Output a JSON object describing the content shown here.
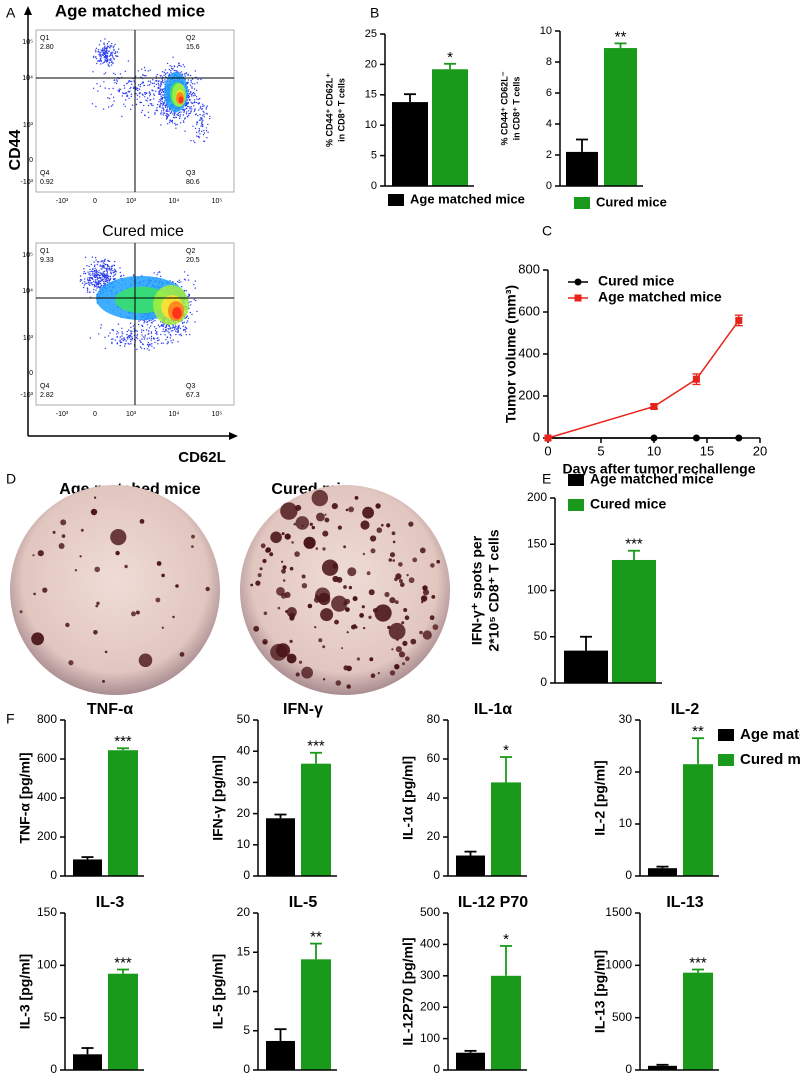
{
  "panel_labels": [
    "A",
    "B",
    "C",
    "D",
    "E",
    "F"
  ],
  "flow": {
    "y_axis_label": "CD44",
    "x_axis_label": "CD62L",
    "yticks": [
      "10⁵",
      "10⁴",
      "10³",
      "0",
      "-10³"
    ],
    "xticks": [
      "-10³",
      "0",
      "10³",
      "10⁴",
      "10⁵"
    ],
    "plots": [
      {
        "title": "Age matched mice",
        "quadrants": [
          {
            "name": "Q1",
            "value": "2.80"
          },
          {
            "name": "Q2",
            "value": "15.6"
          },
          {
            "name": "Q3",
            "value": "80.6"
          },
          {
            "name": "Q4",
            "value": "0.92"
          }
        ]
      },
      {
        "title": "Cured mice",
        "quadrants": [
          {
            "name": "Q1",
            "value": "9.33"
          },
          {
            "name": "Q2",
            "value": "20.5"
          },
          {
            "name": "Q3",
            "value": "67.3"
          },
          {
            "name": "Q4",
            "value": "2.82"
          }
        ]
      }
    ]
  },
  "elispot": {
    "titles": [
      "Age matched mice",
      "Cured mice"
    ]
  },
  "chart_data": [
    {
      "type": "bar",
      "ylabel": [
        "% CD44⁺ CD62L⁺",
        "in CD8⁺ T cells"
      ],
      "values": [
        13.8,
        19.2
      ],
      "errors": [
        1.3,
        0.9
      ],
      "colors": [
        "#000000",
        "#1a9a1a"
      ],
      "ylim": [
        0,
        25
      ],
      "yticks": [
        0,
        5,
        10,
        15,
        20,
        25
      ],
      "annotation": "*",
      "legend": [
        {
          "name": "Age matched mice",
          "color": "#000000"
        }
      ]
    },
    {
      "type": "bar",
      "ylabel": [
        "% CD44⁺ CD62L⁻",
        "in CD8⁺ T cells"
      ],
      "values": [
        2.2,
        8.9
      ],
      "errors": [
        0.8,
        0.3
      ],
      "colors": [
        "#000000",
        "#1a9a1a"
      ],
      "ylim": [
        0,
        10
      ],
      "yticks": [
        0,
        2,
        4,
        6,
        8,
        10
      ],
      "annotation": "**",
      "legend": [
        {
          "name": "Cured mice",
          "color": "#1a9a1a"
        }
      ]
    },
    {
      "type": "line",
      "xlabel": "Days after tumor rechallenge",
      "ylabel": "Tumor volume (mm³)",
      "x": [
        0,
        10,
        14,
        18
      ],
      "xlim": [
        0,
        20
      ],
      "xticks": [
        0,
        5,
        10,
        15,
        20
      ],
      "ylim": [
        0,
        800
      ],
      "yticks": [
        0,
        200,
        400,
        600,
        800
      ],
      "legend_position": "upper left",
      "series": [
        {
          "name": "Cured mice",
          "color": "#000000",
          "marker": "circle",
          "values": [
            0,
            0,
            0,
            0
          ]
        },
        {
          "name": "Age matched mice",
          "color": "#e8231b",
          "marker": "square",
          "values": [
            0,
            150,
            280,
            560
          ],
          "errors": [
            0,
            10,
            25,
            25
          ]
        }
      ]
    },
    {
      "type": "bar",
      "ylabel": [
        "IFN-γ⁺ spots per",
        "2*10⁵ CD8⁺ T cells"
      ],
      "values": [
        35,
        133
      ],
      "errors": [
        15,
        10
      ],
      "colors": [
        "#000000",
        "#1a9a1a"
      ],
      "ylim": [
        0,
        200
      ],
      "yticks": [
        0,
        50,
        100,
        150,
        200
      ],
      "annotation": "***",
      "legend": [
        {
          "name": "Age matched mice",
          "color": "#000000"
        },
        {
          "name": "Cured mice",
          "color": "#1a9a1a"
        }
      ]
    },
    {
      "type": "bar",
      "title": "TNF-α",
      "ylabel": "TNF-α  [pg/ml]",
      "values": [
        85,
        645
      ],
      "errors": [
        12,
        10
      ],
      "colors": [
        "#000000",
        "#1a9a1a"
      ],
      "ylim": [
        0,
        800
      ],
      "yticks": [
        0,
        200,
        400,
        600,
        800
      ],
      "annotation": "***"
    },
    {
      "type": "bar",
      "title": "IFN-γ",
      "ylabel": "IFN-γ  [pg/ml]",
      "values": [
        18.5,
        36
      ],
      "errors": [
        1.2,
        3.5
      ],
      "colors": [
        "#000000",
        "#1a9a1a"
      ],
      "ylim": [
        0,
        50
      ],
      "yticks": [
        0,
        10,
        20,
        30,
        40,
        50
      ],
      "annotation": "***"
    },
    {
      "type": "bar",
      "title": "IL-1α",
      "ylabel": "IL-1α [pg/ml]",
      "values": [
        10.5,
        48
      ],
      "errors": [
        2,
        13
      ],
      "colors": [
        "#000000",
        "#1a9a1a"
      ],
      "ylim": [
        0,
        80
      ],
      "yticks": [
        0,
        20,
        40,
        60,
        80
      ],
      "annotation": "*"
    },
    {
      "type": "bar",
      "title": "IL-2",
      "ylabel": "IL-2  [pg/ml]",
      "values": [
        1.5,
        21.5
      ],
      "errors": [
        0.3,
        5
      ],
      "colors": [
        "#000000",
        "#1a9a1a"
      ],
      "ylim": [
        0,
        30
      ],
      "yticks": [
        0,
        10,
        20,
        30
      ],
      "annotation": "**",
      "legend": [
        {
          "name": "Age matched mice",
          "color": "#000000"
        },
        {
          "name": "Cured mice",
          "color": "#1a9a1a"
        }
      ]
    },
    {
      "type": "bar",
      "title": "IL-3",
      "ylabel": "IL-3  [pg/ml]",
      "values": [
        15,
        92
      ],
      "errors": [
        6,
        4
      ],
      "colors": [
        "#000000",
        "#1a9a1a"
      ],
      "ylim": [
        0,
        150
      ],
      "yticks": [
        0,
        50,
        100,
        150
      ],
      "annotation": "***"
    },
    {
      "type": "bar",
      "title": "IL-5",
      "ylabel": "IL-5 [pg/ml]",
      "values": [
        3.7,
        14.1
      ],
      "errors": [
        1.5,
        2
      ],
      "colors": [
        "#000000",
        "#1a9a1a"
      ],
      "ylim": [
        0,
        20
      ],
      "yticks": [
        0,
        5,
        10,
        15,
        20
      ],
      "annotation": "**"
    },
    {
      "type": "bar",
      "title": "IL-12 P70",
      "ylabel": "IL-12P70 [pg/ml]",
      "values": [
        55,
        300
      ],
      "errors": [
        6,
        95
      ],
      "colors": [
        "#000000",
        "#1a9a1a"
      ],
      "ylim": [
        0,
        500
      ],
      "yticks": [
        0,
        100,
        200,
        300,
        400,
        500
      ],
      "annotation": "*"
    },
    {
      "type": "bar",
      "title": "IL-13",
      "ylabel": "IL-13  [pg/ml]",
      "values": [
        40,
        930
      ],
      "errors": [
        10,
        30
      ],
      "colors": [
        "#000000",
        "#1a9a1a"
      ],
      "ylim": [
        0,
        1500
      ],
      "yticks": [
        0,
        500,
        1000,
        1500
      ],
      "annotation": "***"
    }
  ]
}
